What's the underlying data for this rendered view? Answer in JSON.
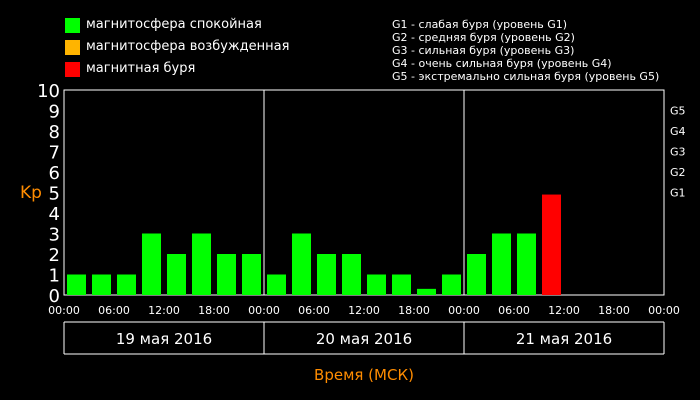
{
  "legend": {
    "items": [
      {
        "label": "магнитосфера спокойная",
        "color": "#00ff00"
      },
      {
        "label": "магнитосфера возбужденная",
        "color": "#ffb400"
      },
      {
        "label": "магнитная буря",
        "color": "#ff0000"
      }
    ],
    "g_levels": [
      "G1 - слабая буря (уровень G1)",
      "G2 - средняя буря (уровень G2)",
      "G3 - сильная буря (уровень G3)",
      "G4 - очень сильная буря (уровень G4)",
      "G5 - экстремально сильная буря (уровень G5)"
    ]
  },
  "colors": {
    "quiet": "#00ff00",
    "active": "#ffb400",
    "storm": "#ff0000",
    "accent": "#ff8c00",
    "grid": "#ffffff"
  },
  "chart_data": {
    "type": "bar",
    "ylabel": "Kp",
    "xlabel": "Время (МСК)",
    "ylim": [
      0,
      10
    ],
    "y_ticks": [
      "0",
      "1",
      "2",
      "3",
      "4",
      "5",
      "6",
      "7",
      "8",
      "9",
      "10"
    ],
    "g_axis": [
      {
        "label": "G1",
        "kp": 5
      },
      {
        "label": "G2",
        "kp": 6
      },
      {
        "label": "G3",
        "kp": 7
      },
      {
        "label": "G4",
        "kp": 8
      },
      {
        "label": "G5",
        "kp": 9
      }
    ],
    "x_ticks": [
      "00:00",
      "06:00",
      "12:00",
      "18:00",
      "00:00",
      "06:00",
      "12:00",
      "18:00",
      "00:00",
      "06:00",
      "12:00",
      "18:00",
      "00:00"
    ],
    "days": [
      "19 мая 2016",
      "20 мая 2016",
      "21 мая 2016"
    ],
    "values": [
      1,
      1,
      1,
      3,
      2,
      3,
      2,
      2,
      1,
      3,
      2,
      2,
      1,
      1,
      0.3,
      1,
      2,
      3,
      3,
      4.9
    ],
    "colors": [
      "quiet",
      "quiet",
      "quiet",
      "quiet",
      "quiet",
      "quiet",
      "quiet",
      "quiet",
      "quiet",
      "quiet",
      "quiet",
      "quiet",
      "quiet",
      "quiet",
      "quiet",
      "quiet",
      "quiet",
      "quiet",
      "quiet",
      "storm"
    ],
    "slots_total": 24,
    "grid": false
  }
}
